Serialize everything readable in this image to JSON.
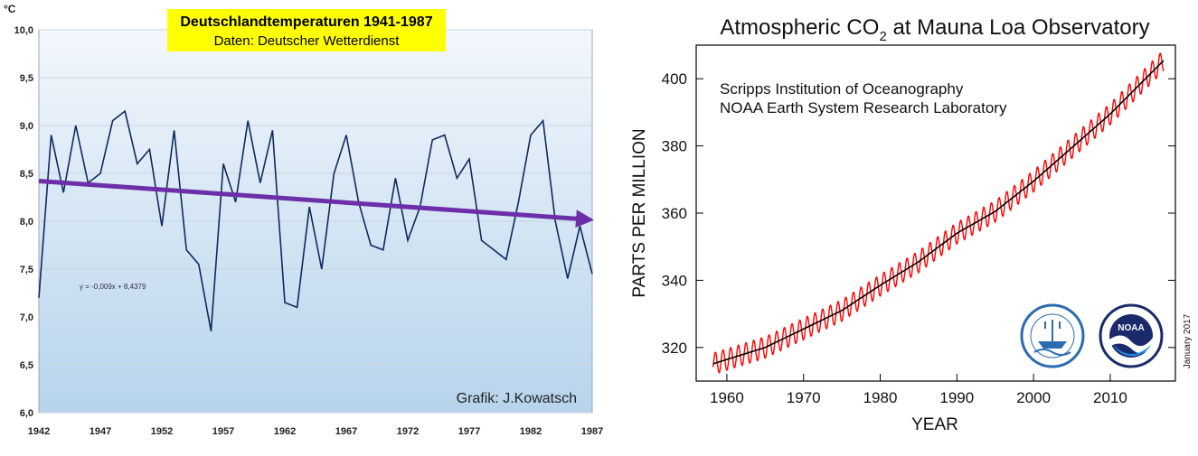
{
  "chart_data": [
    {
      "type": "line",
      "title": "Deutschlandtemperaturen 1941-1987",
      "subtitle": "Daten: Deutscher Wetterdienst",
      "ylabel": "°C",
      "xlabel": "",
      "credit": "Grafik: J.Kowatsch",
      "trend_equation": "y = -0,009x + 8,4379",
      "xlim": [
        1942,
        1987
      ],
      "ylim": [
        6.0,
        10.0
      ],
      "x_ticks": [
        "1942",
        "1947",
        "1952",
        "1957",
        "1962",
        "1967",
        "1972",
        "1977",
        "1982",
        "1987"
      ],
      "y_ticks": [
        "10,0",
        "9,5",
        "9,0",
        "8,5",
        "8,0",
        "7,5",
        "7,0",
        "6,5",
        "6,0"
      ],
      "series": [
        {
          "x": [
            1942,
            1943,
            1944,
            1945,
            1946,
            1947,
            1948,
            1949,
            1950,
            1951,
            1952,
            1953,
            1954,
            1955,
            1956,
            1957,
            1958,
            1959,
            1960,
            1961,
            1962,
            1963,
            1964,
            1965,
            1966,
            1967,
            1968,
            1969,
            1970,
            1971,
            1972,
            1973,
            1974,
            1975,
            1976,
            1977,
            1978,
            1979,
            1980,
            1981,
            1982,
            1983,
            1984,
            1985,
            1986,
            1987
          ],
          "values": [
            7.2,
            8.9,
            8.3,
            9.0,
            8.4,
            8.5,
            9.05,
            9.15,
            8.6,
            8.75,
            7.95,
            8.95,
            7.7,
            7.55,
            6.85,
            8.6,
            8.2,
            9.05,
            8.4,
            8.95,
            7.15,
            7.1,
            8.15,
            7.5,
            8.5,
            8.9,
            8.2,
            7.75,
            7.7,
            8.45,
            7.8,
            8.15,
            8.85,
            8.9,
            8.45,
            8.65,
            7.8,
            7.7,
            7.6,
            8.2,
            8.9,
            9.05,
            8.0,
            7.4,
            7.95,
            7.45
          ]
        }
      ],
      "trend": {
        "start": [
          1942,
          8.42
        ],
        "end": [
          1987,
          8.02
        ],
        "color": "#6c2fa8"
      },
      "colors": {
        "line": "#0f2a5e",
        "bg_top": "#f3f7fc",
        "bg_bottom": "#b7d4ec",
        "title_bg": "#ffff00"
      }
    },
    {
      "type": "line",
      "title_main": "Atmospheric CO",
      "title_sub": "2",
      "title_tail": " at Mauna Loa Observatory",
      "annotation_lines": [
        "Scripps Institution of Oceanography",
        "NOAA Earth System Research Laboratory"
      ],
      "xlabel": "YEAR",
      "ylabel": "PARTS PER MILLION",
      "date_note": "January 2017",
      "xlim": [
        1956,
        2018.5
      ],
      "ylim": [
        310,
        410
      ],
      "x_ticks": [
        1960,
        1970,
        1980,
        1990,
        2000,
        2010
      ],
      "y_ticks": [
        320,
        340,
        360,
        380,
        400
      ],
      "series": [
        {
          "name": "",
          "kind": "monthly",
          "color": "#ff0000",
          "x_start": 1958.2,
          "x_end": 2017.0,
          "points": [
            [
              1958,
              315
            ],
            [
              1965,
              320
            ],
            [
              1970,
              325.5
            ],
            [
              1975,
              331
            ],
            [
              1980,
              338.5
            ],
            [
              1985,
              345.5
            ],
            [
              1990,
              354
            ],
            [
              1995,
              360.5
            ],
            [
              2000,
              369.5
            ],
            [
              2005,
              379.5
            ],
            [
              2010,
              389.5
            ],
            [
              2017,
              405.5
            ]
          ],
          "seasonal_amplitude": 3.2
        },
        {
          "name": "",
          "kind": "trend",
          "color": "#000000",
          "x_start": 1958.2,
          "x_end": 2017.0,
          "points": [
            [
              1958,
              315
            ],
            [
              1965,
              320
            ],
            [
              1970,
              325.5
            ],
            [
              1975,
              331
            ],
            [
              1980,
              338.5
            ],
            [
              1985,
              345.5
            ],
            [
              1990,
              354
            ],
            [
              1995,
              360.5
            ],
            [
              2000,
              369.5
            ],
            [
              2005,
              379.5
            ],
            [
              2010,
              389.5
            ],
            [
              2017,
              405.5
            ]
          ]
        }
      ],
      "logos": [
        "scripps-logo",
        "noaa-logo"
      ],
      "logo_text": {
        "noaa": "NOAA"
      }
    }
  ]
}
